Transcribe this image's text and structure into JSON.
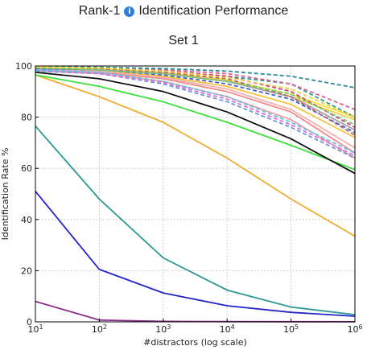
{
  "page": {
    "title": "Rank-1",
    "info_icon": "info-icon",
    "title_rest": "Identification Performance"
  },
  "chart_data": {
    "type": "line",
    "title": "Set 1",
    "xlabel": "#distractors (log scale)",
    "ylabel": "Identification Rate %",
    "xscale": "log",
    "xlim": [
      10,
      1000000
    ],
    "ylim": [
      0,
      100
    ],
    "grid": true,
    "x": [
      10,
      100,
      1000,
      10000,
      100000,
      1000000
    ],
    "x_tick_labels": [
      "10^1",
      "10^2",
      "10^3",
      "10^4",
      "10^5",
      "10^6"
    ],
    "y_ticks": [
      0,
      20,
      40,
      60,
      80,
      100
    ],
    "series": [
      {
        "color": "#8b2f8b",
        "style": "solid",
        "values": [
          8,
          0.7,
          0.2,
          0.1,
          0.05,
          0.02
        ]
      },
      {
        "color": "#2424c8",
        "style": "solid",
        "values": [
          51,
          20.5,
          11.3,
          6.3,
          3.7,
          2.2
        ]
      },
      {
        "color": "#2a9892",
        "style": "solid",
        "values": [
          76.5,
          48,
          25,
          12.4,
          5.8,
          2.8
        ]
      },
      {
        "color": "#efac2e",
        "style": "solid",
        "values": [
          96.5,
          88,
          78,
          64,
          48,
          33.5
        ]
      },
      {
        "color": "#3ee03e",
        "style": "solid",
        "values": [
          96.5,
          92,
          86,
          78,
          69,
          59.5
        ]
      },
      {
        "color": "#111111",
        "style": "solid",
        "values": [
          97.5,
          95,
          90,
          82,
          71.5,
          58
        ]
      },
      {
        "color": "#f0a0a0",
        "style": "solid",
        "values": [
          98,
          97,
          94,
          88,
          79,
          64
        ]
      },
      {
        "color": "#f08a8a",
        "style": "solid",
        "values": [
          98.5,
          97.5,
          95,
          90,
          82,
          66
        ]
      },
      {
        "color": "#f4b0b0",
        "style": "solid",
        "values": [
          99,
          98,
          95.5,
          91,
          83,
          68
        ]
      },
      {
        "color": "#f5c242",
        "style": "solid",
        "values": [
          99,
          98.5,
          96,
          92,
          85,
          72
        ]
      },
      {
        "color": "#f5d040",
        "style": "solid",
        "values": [
          99.5,
          98.5,
          97,
          94,
          88,
          79
        ]
      },
      {
        "color": "#f0e040",
        "style": "solid",
        "values": [
          99.5,
          99,
          97.5,
          94.5,
          89,
          80
        ]
      },
      {
        "color": "#a0a0a0",
        "style": "solid",
        "values": [
          99,
          98.5,
          97,
          94,
          88,
          75
        ]
      },
      {
        "color": "#6a9ad8",
        "style": "dashed",
        "values": [
          98,
          97,
          93,
          86,
          76,
          64
        ]
      },
      {
        "color": "#e070e0",
        "style": "dashed",
        "values": [
          98.5,
          97,
          93.5,
          87,
          77,
          65
        ]
      },
      {
        "color": "#60c0e8",
        "style": "dashed",
        "values": [
          98.5,
          97.5,
          94,
          88,
          78,
          66
        ]
      },
      {
        "color": "#4060d0",
        "style": "dashed",
        "values": [
          99,
          98.5,
          96.5,
          93,
          87,
          74
        ]
      },
      {
        "color": "#2a9892",
        "style": "dashed",
        "values": [
          99.5,
          99,
          98,
          96,
          93,
          80
        ]
      },
      {
        "color": "#c06070",
        "style": "dashed",
        "values": [
          99.5,
          99,
          97.5,
          95,
          88,
          73
        ]
      },
      {
        "color": "#d04070",
        "style": "dashed",
        "values": [
          99.5,
          99,
          98,
          96,
          90,
          76
        ]
      },
      {
        "color": "#e06090",
        "style": "dashed",
        "values": [
          99.7,
          99.3,
          98.5,
          97,
          93,
          83
        ]
      },
      {
        "color": "#2a8a9a",
        "style": "dashed",
        "values": [
          99.8,
          99.5,
          99,
          98,
          96,
          91.5
        ]
      },
      {
        "color": "#70d070",
        "style": "dashed",
        "values": [
          99.3,
          98.5,
          97,
          94,
          89,
          77
        ]
      },
      {
        "color": "#e8d040",
        "style": "dashed",
        "values": [
          99.6,
          99.2,
          98,
          95.5,
          91,
          80
        ]
      }
    ]
  }
}
